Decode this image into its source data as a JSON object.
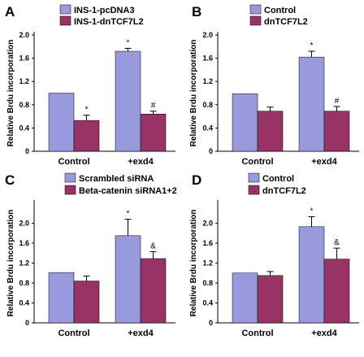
{
  "colors": {
    "series1": "#9999dd",
    "series2": "#993366",
    "errorbar": "#000000"
  },
  "chart_data": [
    {
      "panel": "A",
      "type": "bar",
      "categories": [
        "Control",
        "+exd4"
      ],
      "ylabel": "Relative Brdu incorporation",
      "ylim": [
        0,
        2.0
      ],
      "yticks": [
        "0",
        "0.4",
        "0.8",
        "1.2",
        "1.6",
        "2.0"
      ],
      "legend_position": "top-left",
      "series": [
        {
          "name": "INS-1-pcDNA3",
          "values": [
            1.0,
            1.72
          ],
          "errors": [
            0,
            0.05
          ],
          "annotations": [
            "",
            "*"
          ]
        },
        {
          "name": "INS-1-dnTCF7L2",
          "values": [
            0.53,
            0.64
          ],
          "errors": [
            0.09,
            0.05
          ],
          "annotations": [
            "*",
            "#"
          ]
        }
      ]
    },
    {
      "panel": "B",
      "type": "bar",
      "categories": [
        "Control",
        "+exd4"
      ],
      "ylabel": "Relative Brdu incorporation",
      "ylim": [
        0,
        2.0
      ],
      "yticks": [
        "0",
        "0.4",
        "0.8",
        "1.2",
        "1.6",
        "2.0"
      ],
      "legend_position": "top-left",
      "series": [
        {
          "name": "Control",
          "values": [
            0.99,
            1.62
          ],
          "errors": [
            0,
            0.1
          ],
          "annotations": [
            "",
            "*"
          ]
        },
        {
          "name": "dnTCF7L2",
          "values": [
            0.69,
            0.69
          ],
          "errors": [
            0.07,
            0.08
          ],
          "annotations": [
            "",
            "#"
          ]
        }
      ]
    },
    {
      "panel": "C",
      "type": "bar",
      "categories": [
        "Control",
        "+exd4"
      ],
      "ylabel": "Relative Brdu incorporation",
      "ylim": [
        0,
        2.4
      ],
      "yticks": [
        "0",
        "0.4",
        "0.8",
        "1.2",
        "1.6",
        "2.0"
      ],
      "legend_position": "top-left",
      "series": [
        {
          "name": "Scrambled siRNA",
          "values": [
            1.01,
            1.75
          ],
          "errors": [
            0,
            0.33
          ],
          "annotations": [
            "",
            "*"
          ]
        },
        {
          "name": "Beta-catenin siRNA1+2",
          "values": [
            0.84,
            1.29
          ],
          "errors": [
            0.1,
            0.14
          ],
          "annotations": [
            "",
            "&"
          ]
        }
      ]
    },
    {
      "panel": "D",
      "type": "bar",
      "categories": [
        "Control",
        "+exd4"
      ],
      "ylabel": "Relative Brdu incorporation",
      "ylim": [
        0,
        2.4
      ],
      "yticks": [
        "0",
        "0.4",
        "0.8",
        "1.2",
        "1.6",
        "2.0"
      ],
      "legend_position": "top-left",
      "series": [
        {
          "name": "Control",
          "values": [
            1.0,
            1.93
          ],
          "errors": [
            0,
            0.2
          ],
          "annotations": [
            "",
            "*"
          ]
        },
        {
          "name": "dnTCF7L2",
          "values": [
            0.95,
            1.28
          ],
          "errors": [
            0.08,
            0.22
          ],
          "annotations": [
            "",
            "&"
          ]
        }
      ]
    }
  ]
}
